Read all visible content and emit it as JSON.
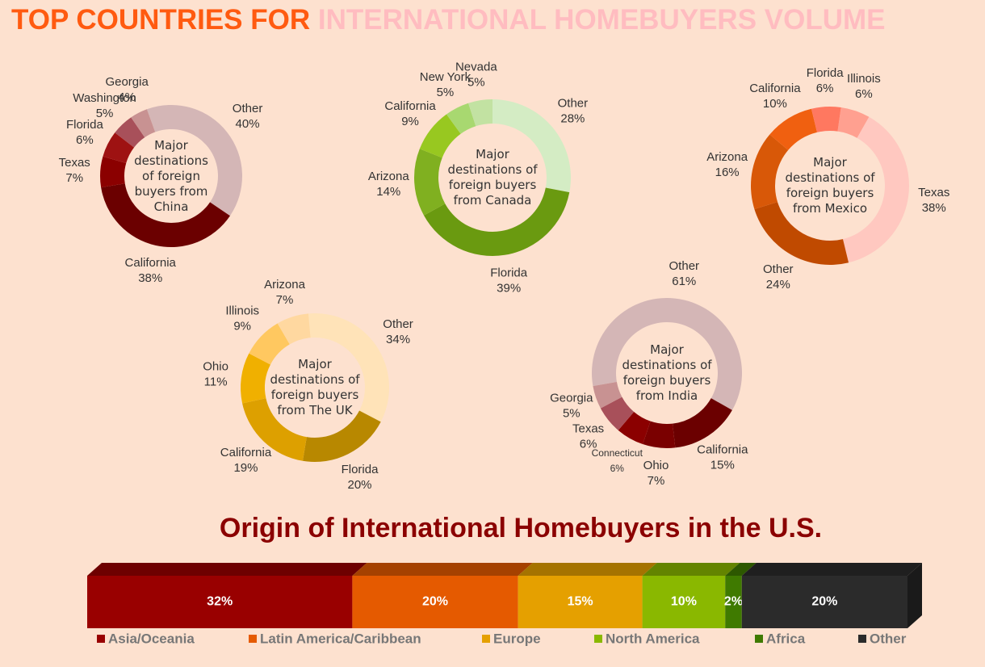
{
  "title": [
    "TOP COUNTRIES FOR",
    "INTERNATIONAL HOMEBUYERS VOLUME"
  ],
  "chart_data": [
    {
      "type": "pie",
      "center_label": "Major destinations of foreign buyers from China",
      "categories": [
        "Other",
        "California",
        "Texas",
        "Florida",
        "Washington",
        "Georgia"
      ],
      "values": [
        40,
        38,
        7,
        6,
        5,
        4
      ],
      "value_labels": [
        "40%",
        "38%",
        "7%",
        "6%",
        "5%",
        "4%"
      ],
      "colors": [
        "#d4b6b6",
        "#6b0000",
        "#8b0000",
        "#9e1212",
        "#a8505a",
        "#c89292"
      ]
    },
    {
      "type": "pie",
      "center_label": "Major destinations of foreign buyers from Canada",
      "categories": [
        "Other",
        "Florida",
        "Arizona",
        "California",
        "New York",
        "Nevada"
      ],
      "values": [
        28,
        39,
        14,
        9,
        5,
        5
      ],
      "value_labels": [
        "28%",
        "39%",
        "14%",
        "9%",
        "5%",
        "5%"
      ],
      "colors": [
        "#d4ecc4",
        "#6a9a10",
        "#80b020",
        "#98c820",
        "#a8d870",
        "#c2e2a2"
      ]
    },
    {
      "type": "pie",
      "center_label": "Major destinations of foreign buyers from Mexico",
      "categories": [
        "Illinois",
        "Texas",
        "Other",
        "Arizona",
        "California",
        "Florida"
      ],
      "values": [
        6,
        38,
        24,
        16,
        10,
        6
      ],
      "value_labels": [
        "6%",
        "38%",
        "24%",
        "16%",
        "10%",
        "6%"
      ],
      "colors": [
        "#ffa090",
        "#ffc8c0",
        "#c04a00",
        "#d85808",
        "#f06010",
        "#ff7860"
      ]
    },
    {
      "type": "pie",
      "center_label": "Major destinations of foreign buyers from The UK",
      "categories": [
        "Other",
        "Florida",
        "California",
        "Ohio",
        "Illinois",
        "Arizona"
      ],
      "values": [
        34,
        20,
        19,
        11,
        9,
        7
      ],
      "value_labels": [
        "34%",
        "20%",
        "19%",
        "11%",
        "9%",
        "7%"
      ],
      "colors": [
        "#ffe3b8",
        "#b88800",
        "#dda000",
        "#f0b000",
        "#ffc860",
        "#ffd8a0"
      ]
    },
    {
      "type": "pie",
      "center_label": "Major destinations of foreign buyers from India",
      "categories": [
        "Other",
        "California",
        "Ohio",
        "Connecticut",
        "Texas",
        "Georgia"
      ],
      "values": [
        61,
        15,
        7,
        6,
        6,
        5
      ],
      "value_labels": [
        "61%",
        "15%",
        "7%",
        "6%",
        "6%",
        "5%"
      ],
      "colors": [
        "#d4b6b6",
        "#6b0000",
        "#7a0000",
        "#8b0000",
        "#a8505a",
        "#c89292"
      ]
    },
    {
      "type": "bar",
      "orientation": "horizontal",
      "stacked": true,
      "title": "Origin of International Homebuyers in the U.S.",
      "xlim": [
        0,
        99
      ],
      "legend": "bottom",
      "series": [
        {
          "name": "Asia/Oceania",
          "color": "#990000",
          "values": [
            32
          ],
          "value_labels": [
            "32%"
          ]
        },
        {
          "name": "Latin America/Caribbean",
          "color": "#e55a00",
          "values": [
            20
          ],
          "value_labels": [
            "20%"
          ]
        },
        {
          "name": "Europe",
          "color": "#e5a000",
          "values": [
            15
          ],
          "value_labels": [
            "15%"
          ]
        },
        {
          "name": "North America",
          "color": "#8ab800",
          "values": [
            10
          ],
          "value_labels": [
            "10%"
          ]
        },
        {
          "name": "Africa",
          "color": "#3f7a00",
          "values": [
            2
          ],
          "value_labels": [
            "2%"
          ]
        },
        {
          "name": "Other",
          "color": "#2b2b2b",
          "values": [
            20
          ],
          "value_labels": [
            "20%"
          ]
        }
      ]
    }
  ]
}
